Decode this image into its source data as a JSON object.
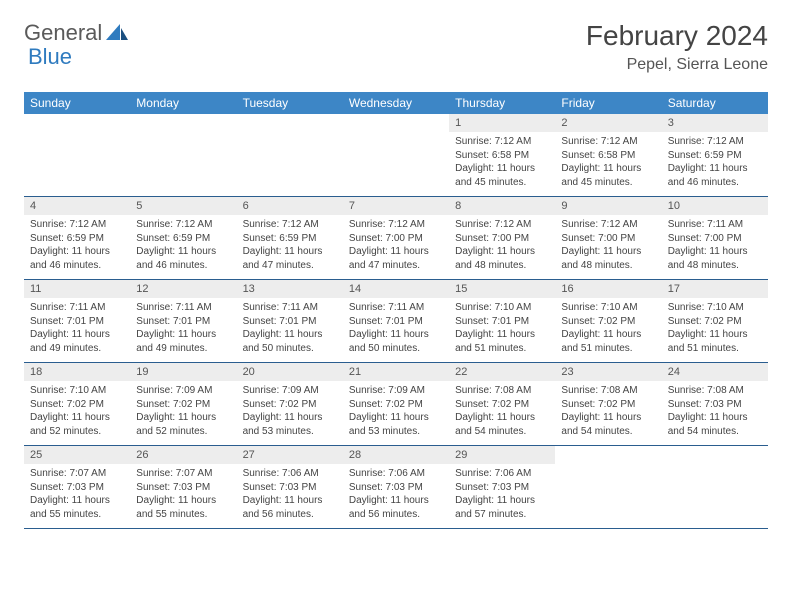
{
  "brand": {
    "part1": "General",
    "part2": "Blue"
  },
  "title": "February 2024",
  "location": "Pepel, Sierra Leone",
  "colors": {
    "header_bg": "#3d86c6",
    "header_text": "#ffffff",
    "daynum_bg": "#ededed",
    "week_border": "#2a5d8f",
    "text": "#444444",
    "brand_gray": "#5a5a5a",
    "brand_blue": "#2f7bbf"
  },
  "daynames": [
    "Sunday",
    "Monday",
    "Tuesday",
    "Wednesday",
    "Thursday",
    "Friday",
    "Saturday"
  ],
  "weeks": [
    [
      {
        "empty": true
      },
      {
        "empty": true
      },
      {
        "empty": true
      },
      {
        "empty": true
      },
      {
        "day": "1",
        "sunrise": "Sunrise: 7:12 AM",
        "sunset": "Sunset: 6:58 PM",
        "daylight": "Daylight: 11 hours and 45 minutes."
      },
      {
        "day": "2",
        "sunrise": "Sunrise: 7:12 AM",
        "sunset": "Sunset: 6:58 PM",
        "daylight": "Daylight: 11 hours and 45 minutes."
      },
      {
        "day": "3",
        "sunrise": "Sunrise: 7:12 AM",
        "sunset": "Sunset: 6:59 PM",
        "daylight": "Daylight: 11 hours and 46 minutes."
      }
    ],
    [
      {
        "day": "4",
        "sunrise": "Sunrise: 7:12 AM",
        "sunset": "Sunset: 6:59 PM",
        "daylight": "Daylight: 11 hours and 46 minutes."
      },
      {
        "day": "5",
        "sunrise": "Sunrise: 7:12 AM",
        "sunset": "Sunset: 6:59 PM",
        "daylight": "Daylight: 11 hours and 46 minutes."
      },
      {
        "day": "6",
        "sunrise": "Sunrise: 7:12 AM",
        "sunset": "Sunset: 6:59 PM",
        "daylight": "Daylight: 11 hours and 47 minutes."
      },
      {
        "day": "7",
        "sunrise": "Sunrise: 7:12 AM",
        "sunset": "Sunset: 7:00 PM",
        "daylight": "Daylight: 11 hours and 47 minutes."
      },
      {
        "day": "8",
        "sunrise": "Sunrise: 7:12 AM",
        "sunset": "Sunset: 7:00 PM",
        "daylight": "Daylight: 11 hours and 48 minutes."
      },
      {
        "day": "9",
        "sunrise": "Sunrise: 7:12 AM",
        "sunset": "Sunset: 7:00 PM",
        "daylight": "Daylight: 11 hours and 48 minutes."
      },
      {
        "day": "10",
        "sunrise": "Sunrise: 7:11 AM",
        "sunset": "Sunset: 7:00 PM",
        "daylight": "Daylight: 11 hours and 48 minutes."
      }
    ],
    [
      {
        "day": "11",
        "sunrise": "Sunrise: 7:11 AM",
        "sunset": "Sunset: 7:01 PM",
        "daylight": "Daylight: 11 hours and 49 minutes."
      },
      {
        "day": "12",
        "sunrise": "Sunrise: 7:11 AM",
        "sunset": "Sunset: 7:01 PM",
        "daylight": "Daylight: 11 hours and 49 minutes."
      },
      {
        "day": "13",
        "sunrise": "Sunrise: 7:11 AM",
        "sunset": "Sunset: 7:01 PM",
        "daylight": "Daylight: 11 hours and 50 minutes."
      },
      {
        "day": "14",
        "sunrise": "Sunrise: 7:11 AM",
        "sunset": "Sunset: 7:01 PM",
        "daylight": "Daylight: 11 hours and 50 minutes."
      },
      {
        "day": "15",
        "sunrise": "Sunrise: 7:10 AM",
        "sunset": "Sunset: 7:01 PM",
        "daylight": "Daylight: 11 hours and 51 minutes."
      },
      {
        "day": "16",
        "sunrise": "Sunrise: 7:10 AM",
        "sunset": "Sunset: 7:02 PM",
        "daylight": "Daylight: 11 hours and 51 minutes."
      },
      {
        "day": "17",
        "sunrise": "Sunrise: 7:10 AM",
        "sunset": "Sunset: 7:02 PM",
        "daylight": "Daylight: 11 hours and 51 minutes."
      }
    ],
    [
      {
        "day": "18",
        "sunrise": "Sunrise: 7:10 AM",
        "sunset": "Sunset: 7:02 PM",
        "daylight": "Daylight: 11 hours and 52 minutes."
      },
      {
        "day": "19",
        "sunrise": "Sunrise: 7:09 AM",
        "sunset": "Sunset: 7:02 PM",
        "daylight": "Daylight: 11 hours and 52 minutes."
      },
      {
        "day": "20",
        "sunrise": "Sunrise: 7:09 AM",
        "sunset": "Sunset: 7:02 PM",
        "daylight": "Daylight: 11 hours and 53 minutes."
      },
      {
        "day": "21",
        "sunrise": "Sunrise: 7:09 AM",
        "sunset": "Sunset: 7:02 PM",
        "daylight": "Daylight: 11 hours and 53 minutes."
      },
      {
        "day": "22",
        "sunrise": "Sunrise: 7:08 AM",
        "sunset": "Sunset: 7:02 PM",
        "daylight": "Daylight: 11 hours and 54 minutes."
      },
      {
        "day": "23",
        "sunrise": "Sunrise: 7:08 AM",
        "sunset": "Sunset: 7:02 PM",
        "daylight": "Daylight: 11 hours and 54 minutes."
      },
      {
        "day": "24",
        "sunrise": "Sunrise: 7:08 AM",
        "sunset": "Sunset: 7:03 PM",
        "daylight": "Daylight: 11 hours and 54 minutes."
      }
    ],
    [
      {
        "day": "25",
        "sunrise": "Sunrise: 7:07 AM",
        "sunset": "Sunset: 7:03 PM",
        "daylight": "Daylight: 11 hours and 55 minutes."
      },
      {
        "day": "26",
        "sunrise": "Sunrise: 7:07 AM",
        "sunset": "Sunset: 7:03 PM",
        "daylight": "Daylight: 11 hours and 55 minutes."
      },
      {
        "day": "27",
        "sunrise": "Sunrise: 7:06 AM",
        "sunset": "Sunset: 7:03 PM",
        "daylight": "Daylight: 11 hours and 56 minutes."
      },
      {
        "day": "28",
        "sunrise": "Sunrise: 7:06 AM",
        "sunset": "Sunset: 7:03 PM",
        "daylight": "Daylight: 11 hours and 56 minutes."
      },
      {
        "day": "29",
        "sunrise": "Sunrise: 7:06 AM",
        "sunset": "Sunset: 7:03 PM",
        "daylight": "Daylight: 11 hours and 57 minutes."
      },
      {
        "empty": true
      },
      {
        "empty": true
      }
    ]
  ]
}
